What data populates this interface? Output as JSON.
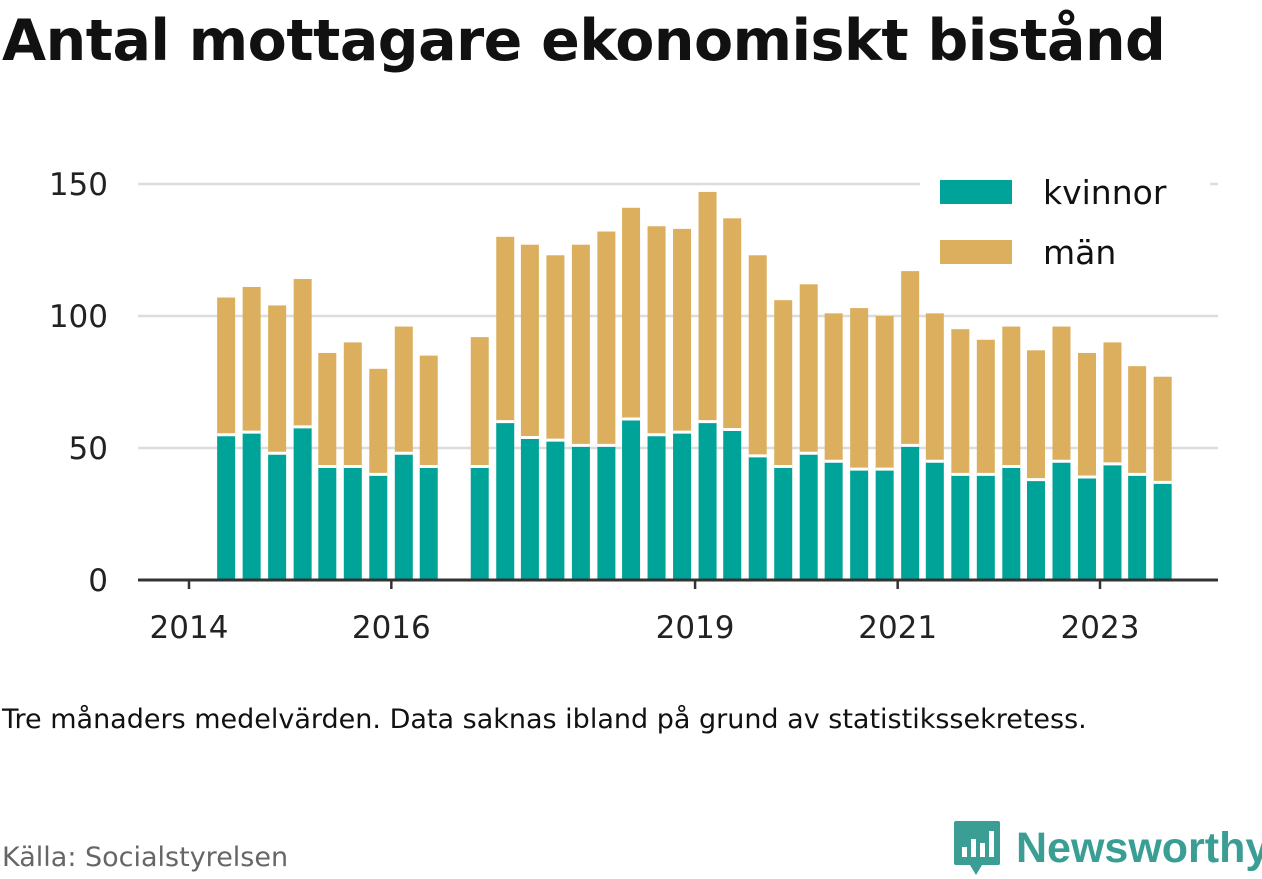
{
  "title": "Antal mottagare ekonomiskt bistånd",
  "note": "Tre månaders medelvärden. Data saknas ibland på grund av statistikssekretess.",
  "source": "Källa: Socialstyrelsen",
  "brand": {
    "name": "Newsworthy",
    "icon": "newsworthy-logo-icon"
  },
  "colors": {
    "kvinnor": "#00a398",
    "man": "#dbaf5d",
    "grid": "#dcdcdc",
    "axis": "#333333"
  },
  "chart_data": {
    "type": "bar",
    "stacked": true,
    "x_type": "date",
    "xlabel": "",
    "ylabel": "",
    "ylim": [
      0,
      150
    ],
    "yticks": [
      0,
      50,
      100,
      150
    ],
    "xticks": [
      {
        "label": "2014",
        "date": "2014-01-01"
      },
      {
        "label": "2016",
        "date": "2016-01-01"
      },
      {
        "label": "2019",
        "date": "2019-01-01"
      },
      {
        "label": "2021",
        "date": "2021-01-01"
      },
      {
        "label": "2023",
        "date": "2023-01-01"
      }
    ],
    "legend_position": "top-right",
    "categories": [
      "2014-05",
      "2014-08",
      "2014-11",
      "2015-02",
      "2015-05",
      "2015-08",
      "2015-11",
      "2016-02",
      "2016-05",
      "2016-11",
      "2017-02",
      "2017-05",
      "2017-08",
      "2017-11",
      "2018-02",
      "2018-05",
      "2018-08",
      "2018-11",
      "2019-02",
      "2019-05",
      "2019-08",
      "2019-11",
      "2020-02",
      "2020-05",
      "2020-08",
      "2020-11",
      "2021-02",
      "2021-05",
      "2021-08",
      "2021-11",
      "2022-02",
      "2022-05",
      "2022-08",
      "2022-11",
      "2023-02",
      "2023-05",
      "2023-08"
    ],
    "series": [
      {
        "name": "kvinnor",
        "color": "#00a398",
        "values": [
          55,
          56,
          48,
          58,
          43,
          43,
          40,
          48,
          43,
          43,
          60,
          54,
          53,
          51,
          51,
          61,
          55,
          56,
          60,
          57,
          47,
          43,
          48,
          45,
          42,
          42,
          51,
          45,
          40,
          40,
          43,
          38,
          45,
          39,
          44,
          40,
          37
        ]
      },
      {
        "name": "män",
        "color": "#dbaf5d",
        "values": [
          52,
          55,
          56,
          56,
          43,
          47,
          40,
          48,
          42,
          49,
          70,
          73,
          70,
          76,
          81,
          80,
          79,
          77,
          87,
          80,
          76,
          63,
          64,
          56,
          61,
          58,
          66,
          56,
          55,
          51,
          53,
          49,
          51,
          47,
          46,
          41,
          40
        ]
      }
    ]
  }
}
